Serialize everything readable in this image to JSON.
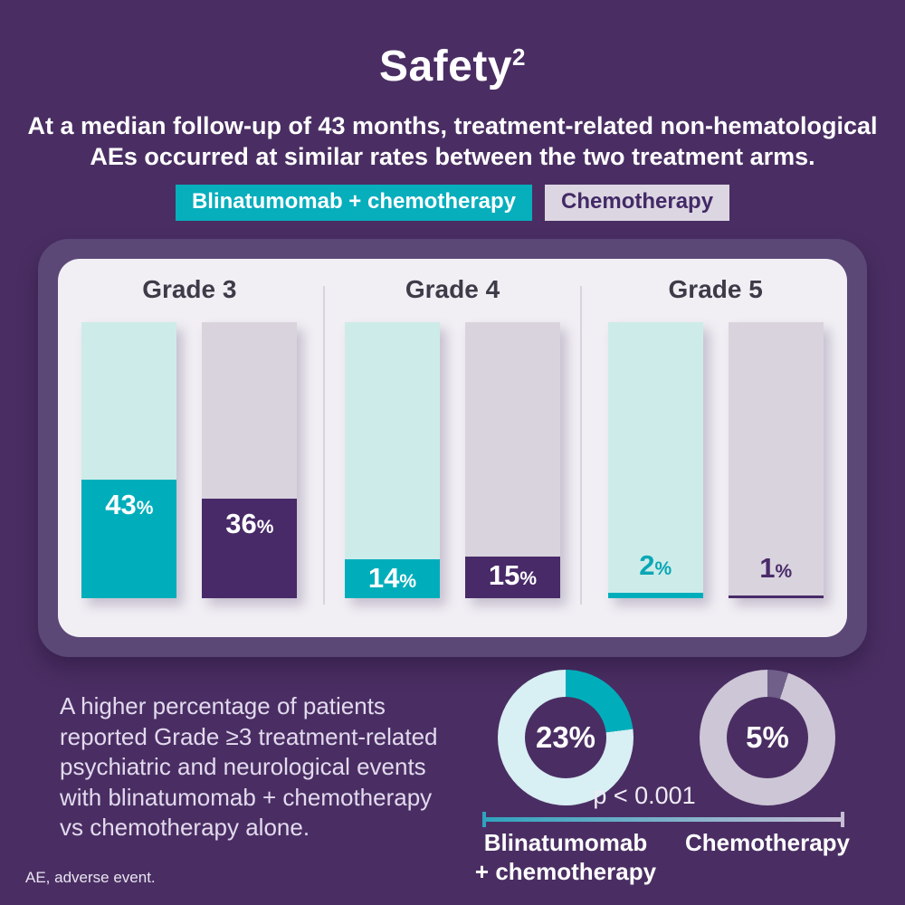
{
  "title": {
    "text": "Safety",
    "superscript": "2"
  },
  "subtitle": "At a median follow-up of 43 months, treatment-related non-hematological\nAEs occurred at similar rates between the two treatment arms.",
  "legend": {
    "arm1_label": "Blinatumomab + chemotherapy",
    "arm2_label": "Chemotherapy"
  },
  "callout": "A higher percentage of patients\nreported Grade ≥3 treatment-related\npsychiatric and neurological events\nwith blinatumomab + chemotherapy\nvs chemotherapy alone.",
  "footnote": "AE, adverse event.",
  "colors": {
    "background": "#4A2E63",
    "panel_border": "#5B4877",
    "card": "#F1EFF4",
    "teal": "#00AEBB",
    "teal_light": "#CDECE9",
    "purple_dark": "#482A68",
    "lavender_light": "#D9D3DE",
    "badge_lavender": "#DCD6E2",
    "grade_title_text": "#3E3B49"
  },
  "chart_data": [
    {
      "type": "bar",
      "title": "Treatment-related non-hematological AEs by grade",
      "categories": [
        "Grade 3",
        "Grade 4",
        "Grade 5"
      ],
      "series": [
        {
          "name": "Blinatumomab + chemotherapy",
          "values": [
            43,
            14,
            2
          ],
          "color": "#00AEBB",
          "track_color": "#CDECE9"
        },
        {
          "name": "Chemotherapy",
          "values": [
            36,
            15,
            1
          ],
          "color": "#482A68",
          "track_color": "#D9D3DE"
        }
      ],
      "unit": "%",
      "ylim": [
        0,
        100
      ],
      "value_labels": true,
      "legend_position": "top",
      "grid": false
    },
    {
      "type": "donut",
      "title": "Grade ≥3 treatment-related psychiatric and neurological events",
      "series": [
        {
          "name": "Blinatumomab + chemotherapy",
          "value": 23,
          "display": "23%",
          "color": "#00AEBB",
          "track_color": "#D8EFF3",
          "label": "Blinatumomab\n+ chemotherapy"
        },
        {
          "name": "Chemotherapy",
          "value": 5,
          "display": "5%",
          "color": "#6F5F89",
          "track_color": "#CDC6D6",
          "label": "Chemotherapy"
        }
      ],
      "annotation": "p < 0.001"
    }
  ]
}
